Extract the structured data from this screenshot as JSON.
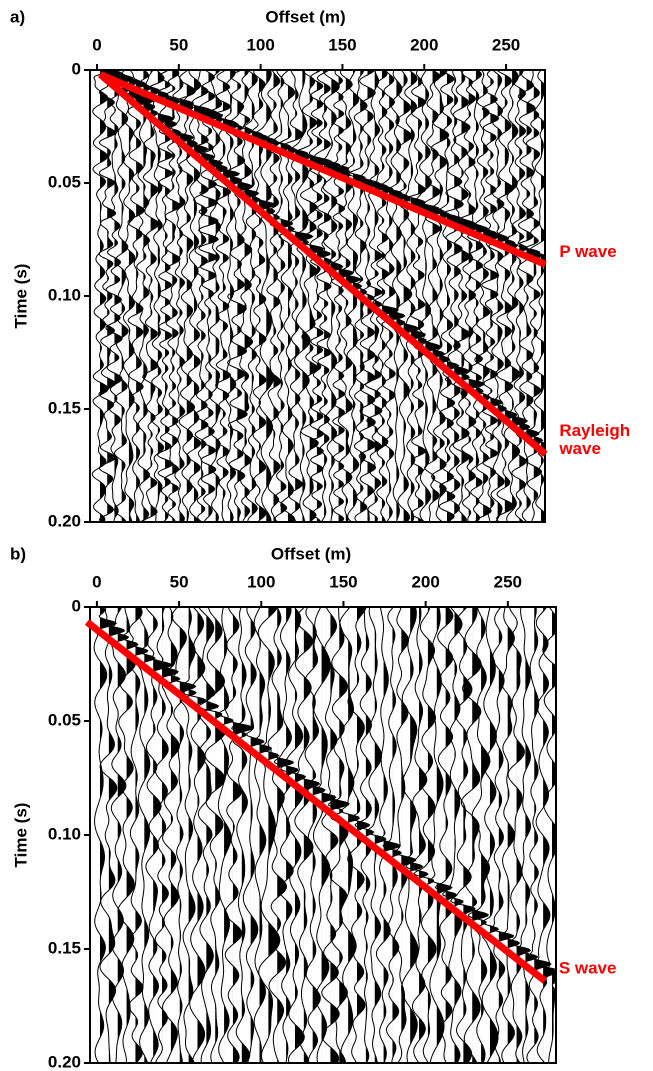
{
  "chart_data": [
    {
      "type": "line",
      "panel_label": "a)",
      "xlabel": "Offset (m)",
      "ylabel": "Time (s)",
      "xlim": [
        -4.3,
        273.8
      ],
      "ylim": [
        0,
        0.2
      ],
      "y_inverted": true,
      "xticks": [
        0,
        50,
        100,
        150,
        200,
        250
      ],
      "yticks": [
        0,
        0.05,
        {
          "value": 0.1,
          "label": "0.10"
        },
        0.15,
        {
          "value": 0.2,
          "label": "0.20"
        }
      ],
      "series": [
        {
          "name": "P wave",
          "color": "#ff0000",
          "x": [
            2,
            274
          ],
          "values": [
            0.002,
            0.086
          ]
        },
        {
          "name": "Rayleigh wave",
          "color": "#ff0000",
          "x": [
            2,
            274
          ],
          "values": [
            0.002,
            0.17
          ]
        }
      ]
    },
    {
      "type": "line",
      "panel_label": "b)",
      "xlabel": "Offset (m)",
      "ylabel": "Time (s)",
      "xlim": [
        -4.2,
        279.3
      ],
      "ylim": [
        0,
        0.2
      ],
      "y_inverted": true,
      "xticks": [
        0,
        50,
        100,
        150,
        200,
        250
      ],
      "yticks": [
        0,
        0.05,
        {
          "value": 0.1,
          "label": "0.10"
        },
        0.15,
        {
          "value": 0.2,
          "label": "0.20"
        }
      ],
      "series": [
        {
          "name": "S wave",
          "color": "#ff0000",
          "x": [
            -6,
            272.5
          ],
          "values": [
            0.0066,
            0.164
          ]
        }
      ]
    }
  ]
}
